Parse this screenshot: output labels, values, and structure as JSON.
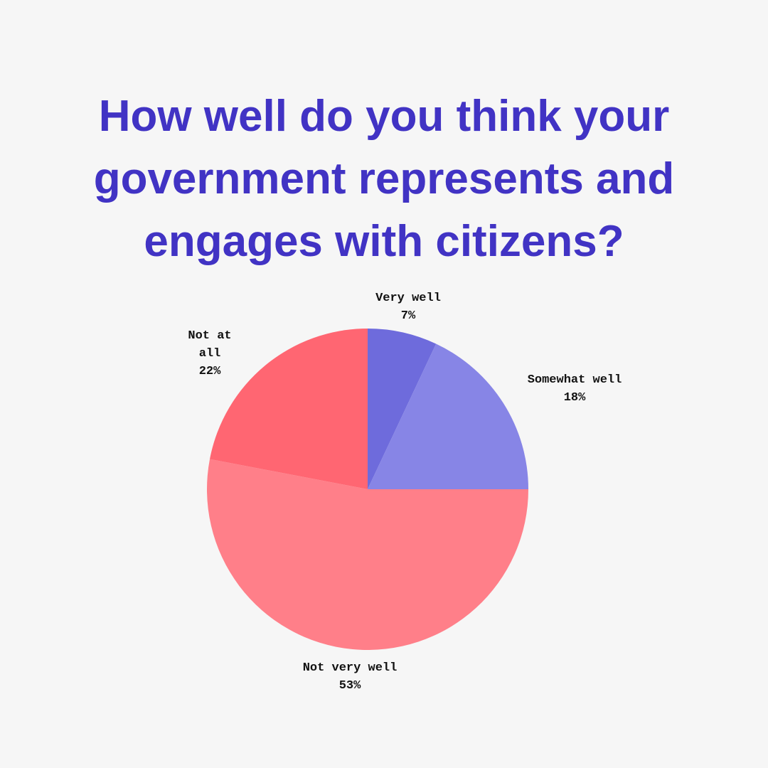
{
  "chart_data": {
    "type": "pie",
    "title": "How well do you think your government represents and engages with citizens?",
    "categories": [
      "Very well",
      "Somewhat well",
      "Not very well",
      "Not at all"
    ],
    "values": [
      7,
      18,
      53,
      22
    ],
    "value_labels": [
      "7%",
      "18%",
      "53%",
      "22%"
    ],
    "colors": [
      "#6e6bdc",
      "#8785e6",
      "#ff7f89",
      "#ff6672"
    ]
  }
}
